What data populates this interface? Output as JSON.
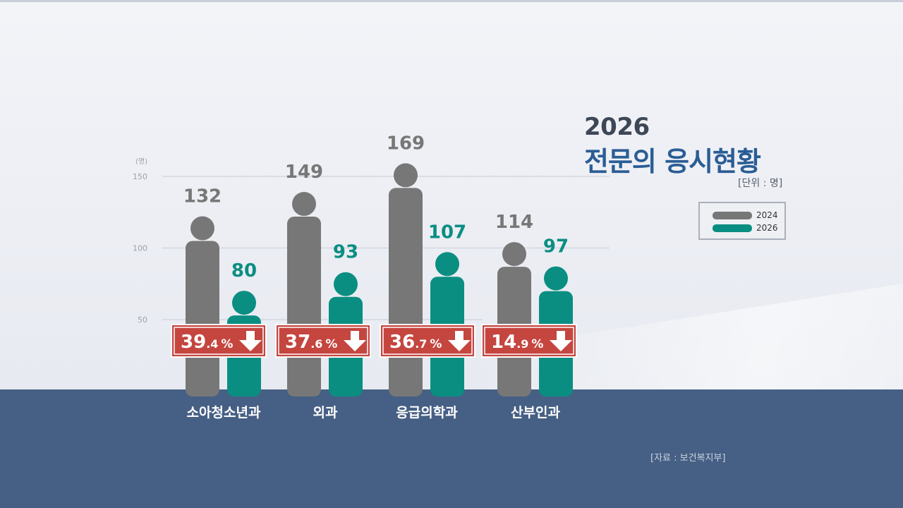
{
  "title": {
    "year": "2026",
    "main": "전문의 응시현황",
    "unit": "[단위 : 명]"
  },
  "source": "[자료 : 보건복지부]",
  "legend": [
    {
      "label": "2024",
      "color": "#777777"
    },
    {
      "label": "2026",
      "color": "#0b8e82"
    }
  ],
  "chart_data": {
    "type": "bar",
    "categories": [
      "소아청소년과",
      "외과",
      "응급의학과",
      "산부인과"
    ],
    "series": [
      {
        "name": "2024",
        "values": [
          132,
          149,
          169,
          114
        ],
        "color": "#777777"
      },
      {
        "name": "2026",
        "values": [
          80,
          93,
          107,
          97
        ],
        "color": "#0b8e82"
      }
    ],
    "y_axis_unit": "(명)",
    "y_ticks": [
      50,
      100,
      150
    ],
    "grid": true,
    "legend_position": "top-right",
    "annotations": [
      {
        "category": "소아청소년과",
        "big": "39",
        "small": ".4",
        "unit": "%",
        "direction": "down"
      },
      {
        "category": "외과",
        "big": "37",
        "small": ".6",
        "unit": "%",
        "direction": "down"
      },
      {
        "category": "응급의학과",
        "big": "36",
        "small": ".7",
        "unit": "%",
        "direction": "down"
      },
      {
        "category": "산부인과",
        "big": "14",
        "small": ".9",
        "unit": "%",
        "direction": "down"
      }
    ]
  }
}
